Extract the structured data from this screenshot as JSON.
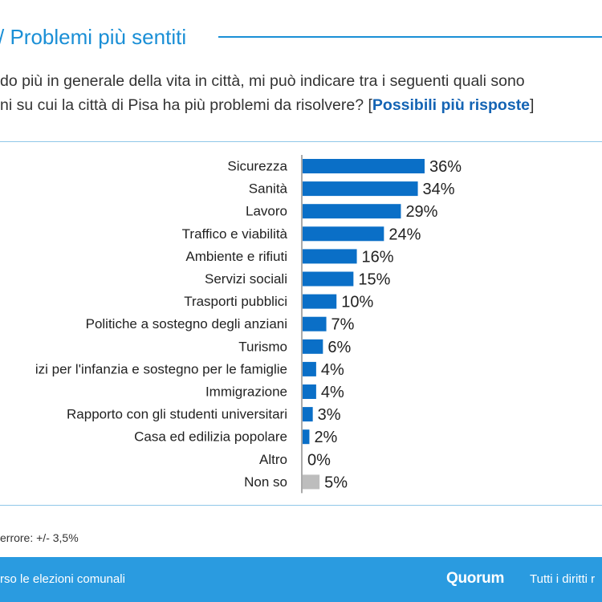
{
  "header": {
    "title": "/ Problemi più sentiti"
  },
  "question": {
    "line1": "do più in generale della vita in città, mi può indicare tra i seguenti quali sono",
    "line2_prefix": "ni su cui la città di Pisa ha più problemi da risolvere? [",
    "line2_bold": "Possibili più risposte",
    "line2_suffix": "]"
  },
  "chart_data": {
    "type": "bar",
    "orientation": "horizontal",
    "categories": [
      "Sicurezza",
      "Sanità",
      "Lavoro",
      "Traffico e viabilità",
      "Ambiente e rifiuti",
      "Servizi sociali",
      "Trasporti pubblici",
      "Politiche a sostegno degli anziani",
      "Turismo",
      "izi per l'infanzia e sostegno per le famiglie",
      "Immigrazione",
      "Rapporto con gli studenti universitari",
      "Casa ed edilizia popolare",
      "Altro",
      "Non so"
    ],
    "values": [
      36,
      34,
      29,
      24,
      16,
      15,
      10,
      7,
      6,
      4,
      4,
      3,
      2,
      0,
      5
    ],
    "value_labels": [
      "36%",
      "34%",
      "29%",
      "24%",
      "16%",
      "15%",
      "10%",
      "7%",
      "6%",
      "4%",
      "4%",
      "3%",
      "2%",
      "0%",
      "5%"
    ],
    "unit": "%",
    "xlim": [
      0,
      40
    ],
    "grid": false,
    "legend": "none",
    "bar_color": "#0a6fc7",
    "highlight_color": "#bdbdbd",
    "highlight_categories": [
      "Non so"
    ]
  },
  "notes": {
    "error": "errore: +/- 3,5%"
  },
  "footer": {
    "left": "rso le elezioni comunali",
    "logo": "Quorum",
    "right": "Tutti i diritti r"
  },
  "colors": {
    "accent": "#1a8fd6",
    "footer_bg": "#2a9be0"
  }
}
